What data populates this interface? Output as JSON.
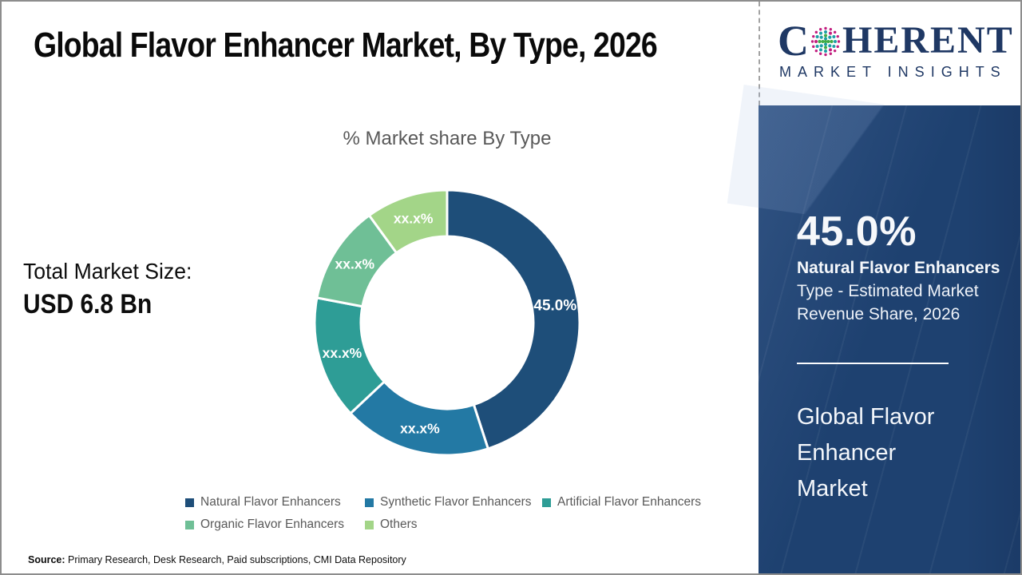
{
  "slide": {
    "title": "Global Flavor Enhancer Market, By Type, 2026",
    "source_label": "Source:",
    "source_text": " Primary Research, Desk Research, Paid subscriptions, CMI Data Repository"
  },
  "total_market": {
    "label": "Total Market Size:",
    "value": "USD 6.8 Bn"
  },
  "logo": {
    "letter_c": "C",
    "word_rest": "HERENT",
    "subtitle": "MARKET INSIGHTS",
    "navy": "#1f3864",
    "dot_magenta": "#c21e7f",
    "dot_teal": "#1d9fa6",
    "dot_green": "#41ac47"
  },
  "sidebar": {
    "stat_value": "45.0%",
    "stat_line1": "Natural Flavor Enhancers",
    "stat_line2": "Type - Estimated Market",
    "stat_line3": "Revenue Share, 2026",
    "market_name_lines": [
      "Global Flavor",
      "Enhancer",
      "Market"
    ],
    "background_color": "#1e4170"
  },
  "chart_data": {
    "type": "pie",
    "donut": true,
    "title": "% Market share By Type",
    "categories": [
      "Natural Flavor Enhancers",
      "Synthetic Flavor Enhancers",
      "Artificial Flavor Enhancers",
      "Organic Flavor Enhancers",
      "Others"
    ],
    "values": [
      45.0,
      18.0,
      15.0,
      12.0,
      10.0
    ],
    "displayed_labels": [
      "45.0%",
      "xx.x%",
      "xx.x%",
      "xx.x%",
      "xx.x%"
    ],
    "colors": [
      "#1e4e79",
      "#2379a4",
      "#2e9d96",
      "#6fbf96",
      "#a3d588"
    ],
    "start_angle_deg": 0,
    "legend_position": "bottom"
  }
}
